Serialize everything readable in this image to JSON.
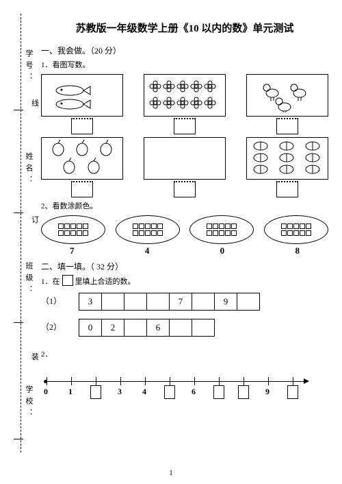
{
  "title": "苏教版一年级数学上册《10 以内的数》单元测试",
  "margin": {
    "labels": [
      "学号：",
      "姓名：",
      "班级：",
      "学校："
    ],
    "chars": [
      "线",
      "订",
      "装"
    ]
  },
  "section1": {
    "heading": "一、我会做。（20 分）",
    "task1": {
      "label": "1．看图写数。",
      "row1": [
        {
          "icon": "fish",
          "count": 2
        },
        {
          "icon": "flower",
          "count": 10
        },
        {
          "icon": "chick",
          "count": 3
        }
      ],
      "row2": [
        {
          "icon": "apple",
          "count": 5
        },
        {
          "icon": "none",
          "count": 0
        },
        {
          "icon": "peach",
          "count": 9
        }
      ]
    },
    "task2": {
      "label": "2、看数涂颜色。",
      "ovals": [
        {
          "squares": 10,
          "number": "7"
        },
        {
          "squares": 10,
          "number": "4"
        },
        {
          "squares": 10,
          "number": "0"
        },
        {
          "squares": 10,
          "number": "8"
        }
      ]
    }
  },
  "section2": {
    "heading": "二、填一填。（ 32 分）",
    "task1": {
      "label_prefix": "1．在",
      "label_suffix": "里填上合适的数。",
      "rows": [
        {
          "label": "（1）",
          "cells": [
            "3",
            "",
            "",
            "",
            "7",
            "",
            "9",
            ""
          ]
        },
        {
          "label": "（2）",
          "cells": [
            "0",
            "2",
            "",
            "6",
            "",
            ""
          ]
        }
      ]
    },
    "task2": {
      "label": "2．",
      "numberline": {
        "start": 0,
        "end": 10,
        "spacing": 36,
        "ticks": [
          {
            "pos": 0,
            "print": "0"
          },
          {
            "pos": 1,
            "print": "1"
          },
          {
            "pos": 2,
            "box": true
          },
          {
            "pos": 3,
            "print": "3"
          },
          {
            "pos": 4,
            "print": "4"
          },
          {
            "pos": 5,
            "box": true
          },
          {
            "pos": 6,
            "print": "6"
          },
          {
            "pos": 7,
            "box": true
          },
          {
            "pos": 8,
            "box": true
          },
          {
            "pos": 9,
            "print": "9"
          },
          {
            "pos": 10,
            "box": true
          }
        ]
      }
    }
  },
  "colors": {
    "ink": "#000000",
    "paper": "#ffffff"
  },
  "page_number": "1"
}
